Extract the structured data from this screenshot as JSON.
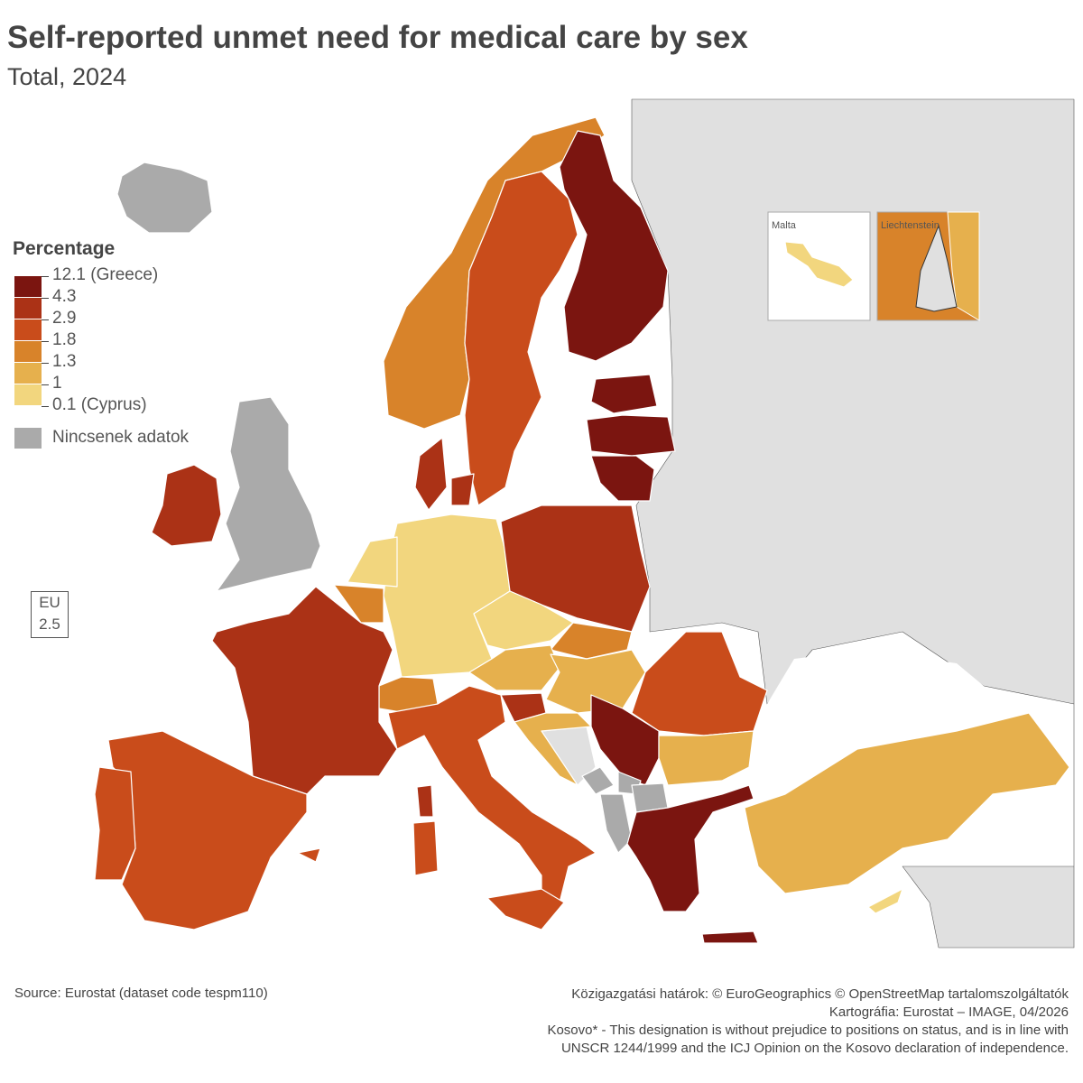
{
  "title": "Self-reported unmet need for medical care by sex",
  "subtitle": "Total, 2024",
  "legend": {
    "title": "Percentage",
    "breaks": [
      "12.1 (Greece)",
      "4.3",
      "2.9",
      "1.8",
      "1.3",
      "1",
      "0.1 (Cyprus)"
    ],
    "colors": [
      "#7b1510",
      "#ab3216",
      "#c94c1b",
      "#d8832a",
      "#e6b04d",
      "#f2d67e"
    ],
    "no_data_label": "Nincsenek adatok",
    "no_data_color": "#aaaaaa",
    "non_covered_color": "#e0e0e0"
  },
  "region_classes": {
    "iceland": -1,
    "united-kingdom": -1,
    "ireland": 1,
    "norway": 3,
    "sweden": 2,
    "finland": 0,
    "estonia": 0,
    "latvia": 0,
    "lithuania": 0,
    "denmark": 1,
    "germany": 5,
    "netherlands": 5,
    "belgium": 3,
    "poland": 1,
    "czechia": 5,
    "slovakia": 3,
    "austria": 4,
    "hungary": 4,
    "slovenia": 1,
    "croatia": 4,
    "switzerland": 3,
    "france": 1,
    "spain": 2,
    "portugal": 2,
    "italy": 2,
    "sardinia": 2,
    "corsica": 1,
    "sicily": 2,
    "romania": 2,
    "bulgaria": 4,
    "serbia": 0,
    "greece": 0,
    "crete": 0,
    "turkey": 4,
    "cyprus": 5,
    "montenegro": -1,
    "albania": -1,
    "north-macedonia": -1,
    "kosovo": -1,
    "malta": 5,
    "liechtenstein": 3,
    "balearics": 2
  },
  "insets": {
    "malta": "Malta",
    "liechtenstein": "Liechtenstein"
  },
  "eu": {
    "label": "EU",
    "value": "2.5"
  },
  "source": "Source: Eurostat (dataset code tespm110)",
  "credits": [
    "Közigazgatási határok: © EuroGeographics © OpenStreetMap tartalomszolgáltatók",
    "Kartográfia: Eurostat – IMAGE, 04/2026",
    "Kosovo* - This designation is without prejudice to positions on status, and is in line with",
    "UNSCR 1244/1999 and the ICJ Opinion on the Kosovo declaration of independence."
  ]
}
